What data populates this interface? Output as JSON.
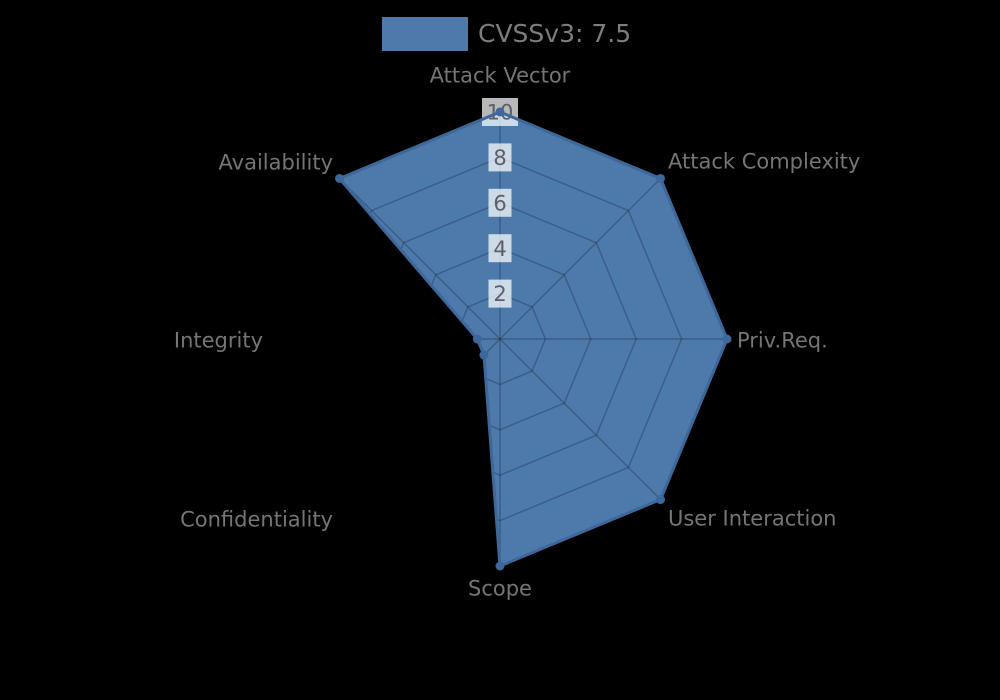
{
  "chart_data": {
    "type": "radar",
    "legend_position": "top-center",
    "grid": true,
    "radial_range": [
      0,
      10
    ],
    "radial_ticks": [
      2,
      4,
      6,
      8,
      10
    ],
    "categories": [
      "Attack Vector",
      "Attack Complexity",
      "Priv.Req.",
      "User Interaction",
      "Scope",
      "Confidentiality",
      "Integrity",
      "Availability"
    ],
    "series": [
      {
        "name": "CVSSv3: 7.5",
        "values": [
          10,
          10,
          10,
          10,
          10,
          1,
          1,
          10
        ]
      }
    ],
    "colors": {
      "fill": "#4e79ab",
      "outline": "#3d6899",
      "marker": "#3d6899",
      "gridline": "rgba(0,0,0,0.22)",
      "axis_label": "#757575",
      "tick_text": "#5a6068",
      "tick_box": "rgba(255,255,255,0.72)",
      "legend_text": "#7d7d7d",
      "background": "#000000"
    }
  }
}
